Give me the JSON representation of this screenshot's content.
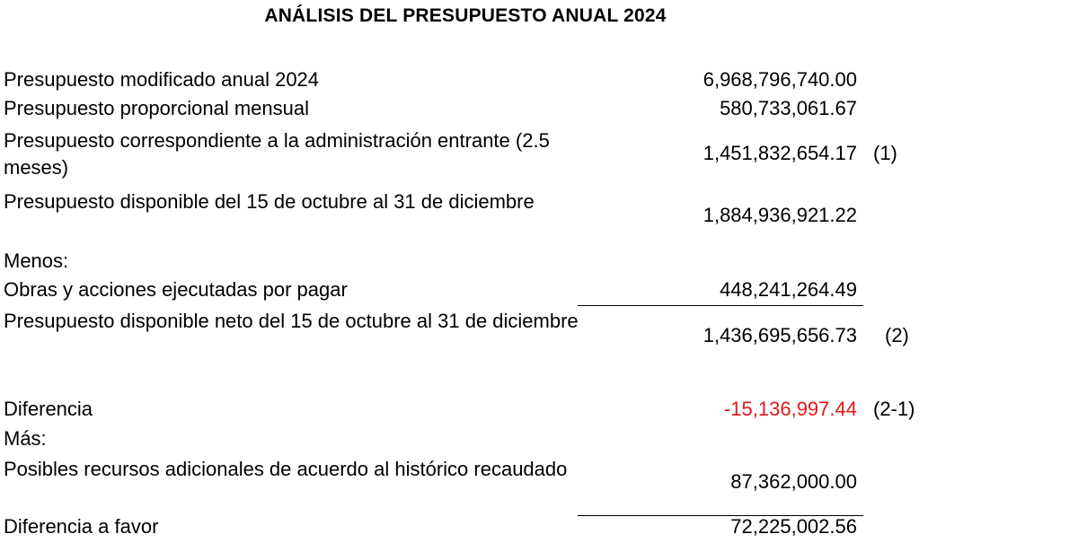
{
  "title": "ANÁLISIS DEL PRESUPUESTO ANUAL 2024",
  "rows": [
    {
      "label": "Presupuesto modificado anual 2024",
      "amount": "6,968,796,740.00",
      "note": ""
    },
    {
      "label": "Presupuesto proporcional mensual",
      "amount": "580,733,061.67",
      "note": ""
    },
    {
      "label": "Presupuesto correspondiente a la administración entrante (2.5 meses)",
      "amount": "1,451,832,654.17",
      "note": "(1)"
    },
    {
      "label": "Presupuesto disponible del 15 de octubre al 31 de diciembre",
      "amount": "1,884,936,921.22",
      "note": ""
    },
    {
      "label": "Menos:",
      "amount": "",
      "note": ""
    },
    {
      "label": "Obras y acciones ejecutadas por pagar",
      "amount": "448,241,264.49",
      "note": ""
    },
    {
      "label": "Presupuesto disponible neto del 15 de octubre al 31 de diciembre",
      "amount": "1,436,695,656.73",
      "note": "(2)"
    },
    {
      "label": "Diferencia",
      "amount": "-15,136,997.44",
      "note": "(2-1)"
    },
    {
      "label": "Más:",
      "amount": "",
      "note": ""
    },
    {
      "label": "Posibles recursos adicionales de acuerdo al histórico recaudado",
      "amount": "87,362,000.00",
      "note": ""
    },
    {
      "label": "Diferencia a favor",
      "amount": "72,225,002.56",
      "note": ""
    }
  ],
  "colors": {
    "negative": "#e0181c",
    "text": "#000000"
  }
}
